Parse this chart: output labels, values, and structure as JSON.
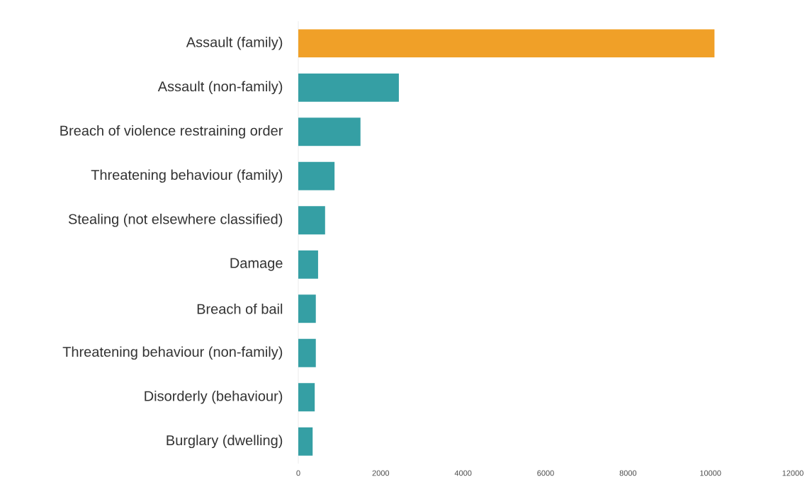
{
  "chart_data": {
    "type": "bar",
    "orientation": "horizontal",
    "categories": [
      "Assault (family)",
      "Assault (non-family)",
      "Breach of violence restraining order",
      "Threatening behaviour (family)",
      "Stealing (not elsewhere classified)",
      "Damage",
      "Breach of bail",
      "Threatening behaviour (non-family)",
      "Disorderly (behaviour)",
      "Burglary (dwelling)"
    ],
    "values": [
      10100,
      2440,
      1510,
      880,
      650,
      480,
      425,
      425,
      400,
      350
    ],
    "colors": [
      "#f0a028",
      "#359fa4",
      "#359fa4",
      "#359fa4",
      "#359fa4",
      "#359fa4",
      "#359fa4",
      "#359fa4",
      "#359fa4",
      "#359fa4"
    ],
    "xlim": [
      0,
      12000
    ],
    "xticks": [
      0,
      2000,
      4000,
      6000,
      8000,
      10000,
      12000
    ],
    "grid": false
  }
}
